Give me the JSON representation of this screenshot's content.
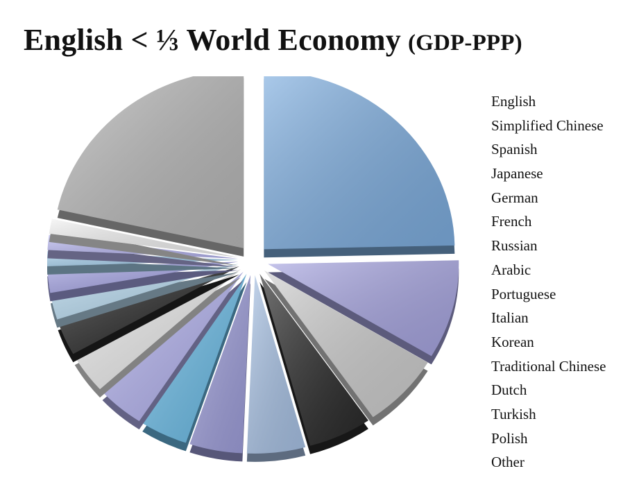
{
  "title": {
    "main": "English < ⅓ World Economy",
    "sub": "(GDP-PPP)"
  },
  "chart_data": {
    "type": "pie",
    "title": "English < ⅓ World Economy (GDP-PPP)",
    "legend_position": "right",
    "categories": [
      "English",
      "Simplified Chinese",
      "Spanish",
      "Japanese",
      "German",
      "French",
      "Russian",
      "Arabic",
      "Portuguese",
      "Italian",
      "Korean",
      "Traditional Chinese",
      "Dutch",
      "Turkish",
      "Polish",
      "Other"
    ],
    "values": [
      27.5,
      10.0,
      7.5,
      6.0,
      5.5,
      5.0,
      4.5,
      4.5,
      4.0,
      3.5,
      2.5,
      2.5,
      1.5,
      1.5,
      1.5,
      24.0
    ],
    "colors": [
      "#7eaee0",
      "#a8a6e2",
      "#cfcfcf",
      "#2a2a2a",
      "#a9c3e6",
      "#9f9fdc",
      "#6bbde8",
      "#b4b3f0",
      "#ececec",
      "#262626",
      "#b9dcf2",
      "#a6a5e6",
      "#a8d2ef",
      "#b7b6f0",
      "#f2f2f2",
      "#b9b9b9"
    ],
    "units": "percent"
  }
}
